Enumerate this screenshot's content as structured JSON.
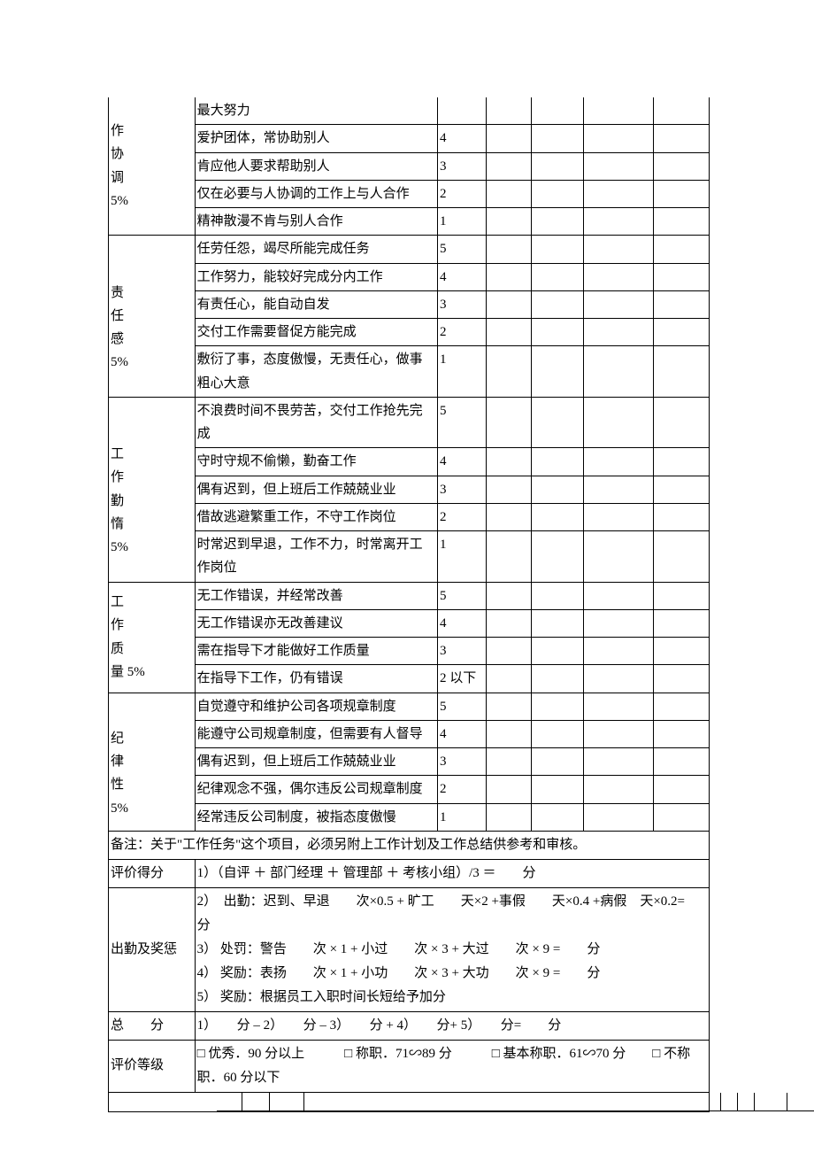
{
  "sections": [
    {
      "category": "作协调5%",
      "rows": [
        {
          "desc": "最大努力",
          "score": ""
        },
        {
          "desc": "爱护团体，常协助别人",
          "score": "4"
        },
        {
          "desc": "肯应他人要求帮助别人",
          "score": "3"
        },
        {
          "desc": "仅在必要与人协调的工作上与人合作",
          "score": "2"
        },
        {
          "desc": "精神散漫不肯与别人合作",
          "score": "1"
        }
      ]
    },
    {
      "category": "责任感5%",
      "rows": [
        {
          "desc": "任劳任怨，竭尽所能完成任务",
          "score": "5"
        },
        {
          "desc": "工作努力，能较好完成分内工作",
          "score": "4"
        },
        {
          "desc": "有责任心，能自动自发",
          "score": "3"
        },
        {
          "desc": "交付工作需要督促方能完成",
          "score": "2"
        },
        {
          "desc": "敷衍了事，态度傲慢，无责任心，做事粗心大意",
          "score": "1"
        }
      ]
    },
    {
      "category": "工作勤惰5%",
      "rows": [
        {
          "desc": "不浪费时间不畏劳苦，交付工作抢先完成",
          "score": "5"
        },
        {
          "desc": "守时守规不偷懒，勤奋工作",
          "score": "4"
        },
        {
          "desc": "偶有迟到，但上班后工作兢兢业业",
          "score": "3"
        },
        {
          "desc": "借故逃避繁重工作，不守工作岗位",
          "score": "2"
        },
        {
          "desc": "时常迟到早退，工作不力，时常离开工作岗位",
          "score": "1"
        }
      ]
    },
    {
      "category": "工作质量 5%",
      "rows": [
        {
          "desc": "无工作错误，并经常改善",
          "score": "5"
        },
        {
          "desc": "无工作错误亦无改善建议",
          "score": "4"
        },
        {
          "desc": "需在指导下才能做好工作质量",
          "score": "3"
        },
        {
          "desc": "在指导下工作，仍有错误",
          "score": "2 以下"
        }
      ]
    },
    {
      "category": "纪律性5%",
      "rows": [
        {
          "desc": "自觉遵守和维护公司各项规章制度",
          "score": "5"
        },
        {
          "desc": "能遵守公司规章制度，但需要有人督导",
          "score": "4"
        },
        {
          "desc": "偶有迟到，但上班后工作兢兢业业",
          "score": "3"
        },
        {
          "desc": "纪律观念不强，偶尔违反公司规章制度",
          "score": "2"
        },
        {
          "desc": "经常违反公司制度，被指态度傲慢",
          "score": "1"
        }
      ]
    }
  ],
  "remark": "备注：关于\"工作任务\"这个项目，必须另附上工作计划及工作总结供参考和审核。",
  "eval_score_label": "评价得分",
  "eval_score_text": "1）（自评 ＋ 部门经理 ＋ 管理部 ＋ 考核小组）/3 ＝　　分",
  "attendance_label": "出勤及奖惩",
  "attendance_lines": [
    "2）　出勤：迟到、早退　　次×0.5 +  旷工　　天×2 +事假　　天×0.4 +病假　天×0.2=　　分",
    "3）  处罚：警告　　次 × 1 +  小过　　次 × 3 +  大过　　次 × 9 =　　分",
    "4）  奖励：表扬　　次 × 1 +  小功　　次 × 3 +  大功　　次 × 9 =　　分",
    "5）  奖励：根据员工入职时间长短给予加分"
  ],
  "total_label": "总　　分",
  "total_text": "1）　　分 – 2）　　分 – 3）　　分 + 4）　　分+ 5）　　分=　　分",
  "grade_label": "评价等级",
  "grade_text": "□ 优秀．90 分以上　　　□ 称职．71∽89 分　　　□ 基本称职．61∽70 分　　□ 不称职．60 分以下"
}
